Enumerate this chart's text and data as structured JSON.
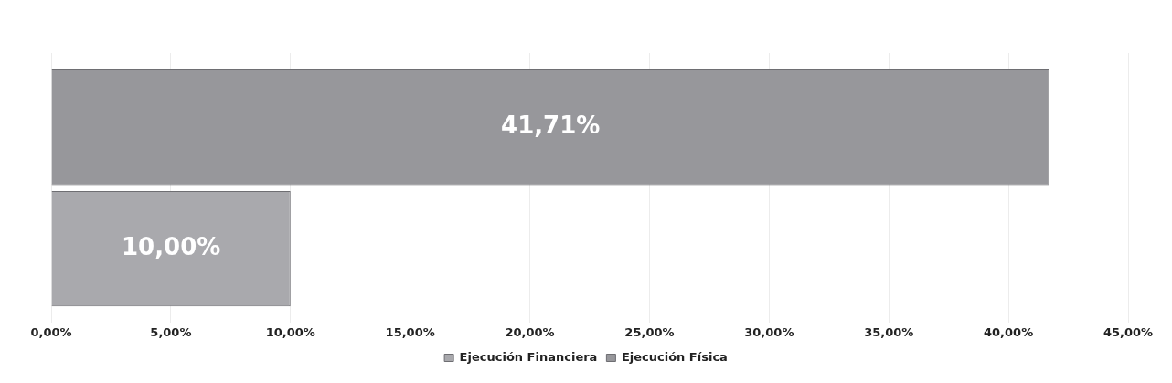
{
  "chart_data": {
    "type": "bar",
    "orientation": "horizontal",
    "categories": [
      null
    ],
    "series": [
      {
        "name": "Ejecución Financiera",
        "color": "#a9a9ad",
        "values": [
          10
        ],
        "value_labels": [
          "10,00%"
        ]
      },
      {
        "name": "Ejecución Física",
        "color": "#97979b",
        "values": [
          41.71
        ],
        "value_labels": [
          "41,71%"
        ]
      }
    ],
    "xlim": [
      0,
      45
    ],
    "xticks": [
      {
        "value": 0,
        "label": "0,00%"
      },
      {
        "value": 5,
        "label": "5,00%"
      },
      {
        "value": 10,
        "label": "10,00%"
      },
      {
        "value": 15,
        "label": "15,00%"
      },
      {
        "value": 20,
        "label": "20,00%"
      },
      {
        "value": 25,
        "label": "25,00%"
      },
      {
        "value": 30,
        "label": "30,00%"
      },
      {
        "value": 35,
        "label": "35,00%"
      },
      {
        "value": 40,
        "label": "40,00%"
      },
      {
        "value": 45,
        "label": "45,00%"
      }
    ],
    "grid": "x",
    "legend": "bottom"
  }
}
